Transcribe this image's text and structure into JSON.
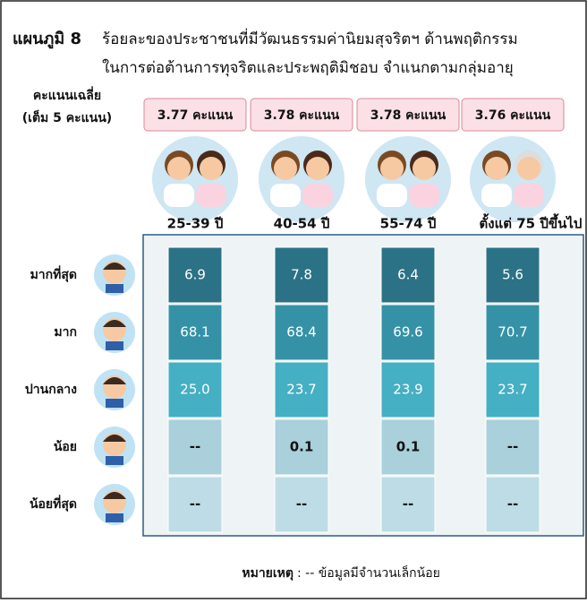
{
  "header": {
    "title": "แผนภูมิ 8",
    "line1": "ร้อยละของประชาชนที่มีวัฒนธรรมค่านิยมสุจริตฯ ด้านพฤติกรรม",
    "line2": "ในการต่อต้านการทุจริตและประพฤติมิชอบ  จำแนกตามกลุ่มอายุ"
  },
  "score_caption": [
    "คะแนนเฉลี่ย",
    "(เต็ม 5 คะแนน)"
  ],
  "groups": [
    {
      "label": "25-39 ปี",
      "score": "3.77 คะแนน"
    },
    {
      "label": "40-54 ปี",
      "score": "3.78 คะแนน"
    },
    {
      "label": "55-74 ปี",
      "score": "3.78 คะแนน"
    },
    {
      "label": "ตั้งแต่ 75 ปีขึ้นไป",
      "score": "3.76 คะแนน"
    }
  ],
  "table": {
    "rows": [
      {
        "label": "มากที่สุด",
        "cells": [
          "6.9",
          "7.8",
          "6.4",
          "5.6"
        ]
      },
      {
        "label": "มาก",
        "cells": [
          "68.1",
          "68.4",
          "69.6",
          "70.7"
        ]
      },
      {
        "label": "ปานกลาง",
        "cells": [
          "25.0",
          "23.7",
          "23.9",
          "23.7"
        ]
      },
      {
        "label": "น้อย",
        "cells": [
          "--",
          "0.1",
          "0.1",
          "--"
        ]
      },
      {
        "label": "น้อยที่สุด",
        "cells": [
          "--",
          "--",
          "--",
          "--"
        ]
      }
    ]
  },
  "note": {
    "label": "หมายเหตุ",
    "text": ": -- ข้อมูลมีจำนวนเล็กน้อย"
  }
}
